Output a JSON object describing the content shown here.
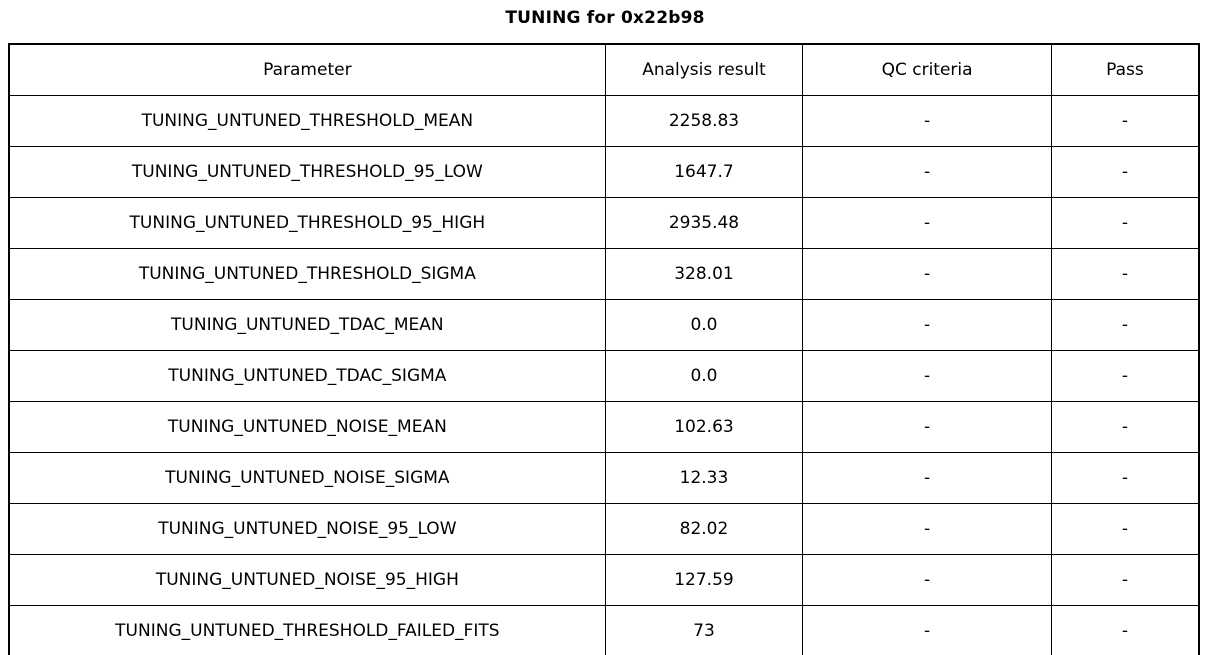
{
  "title": "TUNING for 0x22b98",
  "chart_data": {
    "type": "table",
    "title": "TUNING for 0x22b98",
    "columns": [
      "Parameter",
      "Analysis result",
      "QC criteria",
      "Pass"
    ],
    "rows": [
      [
        "TUNING_UNTUNED_THRESHOLD_MEAN",
        "2258.83",
        "-",
        "-"
      ],
      [
        "TUNING_UNTUNED_THRESHOLD_95_LOW",
        "1647.7",
        "-",
        "-"
      ],
      [
        "TUNING_UNTUNED_THRESHOLD_95_HIGH",
        "2935.48",
        "-",
        "-"
      ],
      [
        "TUNING_UNTUNED_THRESHOLD_SIGMA",
        "328.01",
        "-",
        "-"
      ],
      [
        "TUNING_UNTUNED_TDAC_MEAN",
        "0.0",
        "-",
        "-"
      ],
      [
        "TUNING_UNTUNED_TDAC_SIGMA",
        "0.0",
        "-",
        "-"
      ],
      [
        "TUNING_UNTUNED_NOISE_MEAN",
        "102.63",
        "-",
        "-"
      ],
      [
        "TUNING_UNTUNED_NOISE_SIGMA",
        "12.33",
        "-",
        "-"
      ],
      [
        "TUNING_UNTUNED_NOISE_95_LOW",
        "82.02",
        "-",
        "-"
      ],
      [
        "TUNING_UNTUNED_NOISE_95_HIGH",
        "127.59",
        "-",
        "-"
      ],
      [
        "TUNING_UNTUNED_THRESHOLD_FAILED_FITS",
        "73",
        "-",
        "-"
      ]
    ],
    "layout": {
      "grid": true,
      "border_color": "#000000",
      "background_color": "#ffffff",
      "text_color": "#000000",
      "title_position": "top-center"
    }
  }
}
